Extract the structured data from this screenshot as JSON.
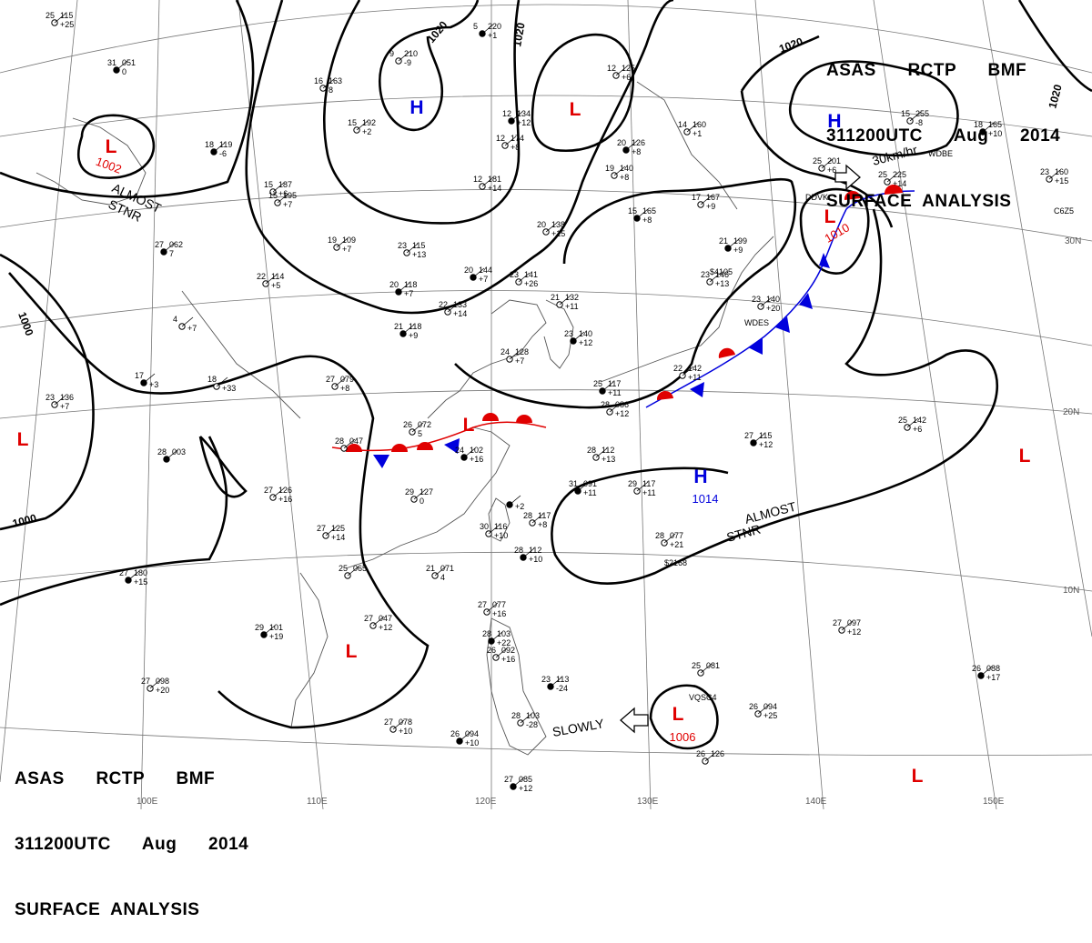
{
  "header": {
    "line1": "ASAS      RCTP      BMF",
    "line2": "311200UTC      Aug      2014",
    "line3": "SURFACE  ANALYSIS"
  },
  "latitude_labels": [
    {
      "id": "lat30",
      "text": "30N"
    },
    {
      "id": "lat20",
      "text": "20N"
    },
    {
      "id": "lat10",
      "text": "10N"
    }
  ],
  "longitude_labels": [
    {
      "id": "lon100",
      "text": "100E"
    },
    {
      "id": "lon110",
      "text": "110E"
    },
    {
      "id": "lon120",
      "text": "120E"
    },
    {
      "id": "lon130",
      "text": "130E"
    },
    {
      "id": "lon140",
      "text": "140E"
    },
    {
      "id": "lon150",
      "text": "150E"
    }
  ],
  "isobar_labels": [
    {
      "id": "iso1020a",
      "text": "1020"
    },
    {
      "id": "iso1020b",
      "text": "1020"
    },
    {
      "id": "iso1020c",
      "text": "1020"
    },
    {
      "id": "iso1020d",
      "text": "1020"
    },
    {
      "id": "iso1000a",
      "text": "1000"
    },
    {
      "id": "iso1000b",
      "text": "1000"
    }
  ],
  "pressure_centers": [
    {
      "id": "l-west",
      "type": "L",
      "pressure": "1002",
      "color": "#e00000"
    },
    {
      "id": "h-north",
      "type": "H",
      "color": "#0000dd"
    },
    {
      "id": "l-north",
      "type": "L",
      "color": "#e00000"
    },
    {
      "id": "h-northeast",
      "type": "H",
      "color": "#0000dd"
    },
    {
      "id": "l-japan",
      "type": "L",
      "pressure": "1010",
      "color": "#e00000"
    },
    {
      "id": "l-far-west",
      "type": "L",
      "color": "#e00000"
    },
    {
      "id": "l-china",
      "type": "L",
      "color": "#e00000"
    },
    {
      "id": "h-pacific",
      "type": "H",
      "pressure": "1014",
      "color": "#0000dd"
    },
    {
      "id": "l-east",
      "type": "L",
      "color": "#e00000"
    },
    {
      "id": "l-indochina",
      "type": "L",
      "color": "#e00000"
    },
    {
      "id": "l-philippines",
      "type": "L",
      "pressure": "1006",
      "color": "#e00000"
    },
    {
      "id": "l-southeast",
      "type": "L",
      "color": "#e00000"
    }
  ],
  "annotations": [
    {
      "id": "almost-stnr-west",
      "lines": [
        "ALMOST",
        "STNR"
      ]
    },
    {
      "id": "almost-stnr-pacific",
      "lines": [
        "ALMOST",
        "STNR"
      ]
    },
    {
      "id": "motion-japan",
      "text": "30km/hr"
    },
    {
      "id": "motion-philippines",
      "text": "SLOWLY"
    }
  ],
  "stations": [
    {
      "t": "31",
      "p": "051",
      "tend": "0"
    },
    {
      "t": "16",
      "p": "163",
      "tend": "8"
    },
    {
      "t": "9",
      "p": "210",
      "tend": "-9"
    },
    {
      "t": "5",
      "p": "220",
      "tend": "+1"
    },
    {
      "t": "15",
      "p": "192",
      "tend": "+2"
    },
    {
      "t": "12",
      "p": "174",
      "tend": "+8"
    },
    {
      "t": "18",
      "p": "119",
      "tend": "-6"
    },
    {
      "t": "15",
      "p": "187",
      "tend": "+6"
    },
    {
      "t": "15",
      "p": "195",
      "tend": "+7"
    },
    {
      "t": "12",
      "p": "134",
      "tend": "+12"
    },
    {
      "t": "12",
      "p": "181",
      "tend": "+14"
    },
    {
      "t": "12",
      "p": "125",
      "tend": "+6"
    },
    {
      "t": "20",
      "p": "126",
      "tend": "+8"
    },
    {
      "t": "19",
      "p": "140",
      "tend": "+8"
    },
    {
      "t": "14",
      "p": "160",
      "tend": "+1"
    },
    {
      "t": "15",
      "p": "165",
      "tend": "+8"
    },
    {
      "t": "17",
      "p": "167",
      "tend": "+9"
    },
    {
      "t": "15",
      "p": "255",
      "tend": "-8"
    },
    {
      "t": "18",
      "p": "165",
      "tend": "+10"
    },
    {
      "t": "23",
      "p": "160",
      "tend": "+15"
    },
    {
      "t": "20",
      "p": "138",
      "tend": "+15"
    },
    {
      "t": "21",
      "p": "199",
      "tend": "+9"
    },
    {
      "t": "25",
      "p": "201",
      "tend": "+6"
    },
    {
      "t": "25",
      "p": "225",
      "tend": "+14"
    },
    {
      "t": "27",
      "p": "062",
      "tend": "7"
    },
    {
      "t": "19",
      "p": "109",
      "tend": "+7"
    },
    {
      "t": "23",
      "p": "115",
      "tend": "+13"
    },
    {
      "t": "20",
      "p": "144",
      "tend": "+7"
    },
    {
      "t": "23",
      "p": "141",
      "tend": "+26"
    },
    {
      "t": "22",
      "p": "114",
      "tend": "+5"
    },
    {
      "t": "20",
      "p": "118",
      "tend": "+7"
    },
    {
      "t": "22",
      "p": "133",
      "tend": "+14"
    },
    {
      "t": "21",
      "p": "132",
      "tend": "+11"
    },
    {
      "t": "23",
      "p": "140",
      "tend": "+12"
    },
    {
      "t": "23",
      "p": "146",
      "tend": "+13"
    },
    {
      "t": "23",
      "p": "140",
      "tend": "+20"
    },
    {
      "t": "21",
      "p": "118",
      "tend": "+9"
    },
    {
      "t": "24",
      "p": "128",
      "tend": "+7"
    },
    {
      "t": "4",
      "p": "",
      "tend": "+7"
    },
    {
      "t": "17",
      "p": "",
      "tend": "+3"
    },
    {
      "t": "18",
      "p": "",
      "tend": "+33"
    },
    {
      "t": "27",
      "p": "079",
      "tend": "+8"
    },
    {
      "t": "25",
      "p": "117",
      "tend": "+11"
    },
    {
      "t": "22",
      "p": "142",
      "tend": "+11"
    },
    {
      "t": "23",
      "p": "136",
      "tend": "+7"
    },
    {
      "t": "28",
      "p": "003",
      "tend": ""
    },
    {
      "t": "28",
      "p": "047",
      "tend": ""
    },
    {
      "t": "26",
      "p": "072",
      "tend": "5"
    },
    {
      "t": "24",
      "p": "102",
      "tend": "+16"
    },
    {
      "t": "28",
      "p": "086",
      "tend": "+12"
    },
    {
      "t": "28",
      "p": "112",
      "tend": "+13"
    },
    {
      "t": "27",
      "p": "115",
      "tend": "+12"
    },
    {
      "t": "25",
      "p": "142",
      "tend": "+6"
    },
    {
      "t": "29",
      "p": "127",
      "tend": "0"
    },
    {
      "t": "31",
      "p": "091",
      "tend": "+11"
    },
    {
      "t": "29",
      "p": "117",
      "tend": "+11"
    },
    {
      "t": "27",
      "p": "126",
      "tend": "+16"
    },
    {
      "t": "",
      "p": "",
      "tend": "+2"
    },
    {
      "t": "28",
      "p": "117",
      "tend": "+8"
    },
    {
      "t": "30",
      "p": "116",
      "tend": "+10"
    },
    {
      "t": "28",
      "p": "112",
      "tend": "+10"
    },
    {
      "t": "27",
      "p": "125",
      "tend": "+14"
    },
    {
      "t": "28",
      "p": "077",
      "tend": "+21"
    },
    {
      "t": "27",
      "p": "180",
      "tend": "+15"
    },
    {
      "t": "25",
      "p": "065",
      "tend": ""
    },
    {
      "t": "21",
      "p": "071",
      "tend": "4"
    },
    {
      "t": "29",
      "p": "101",
      "tend": "+19"
    },
    {
      "t": "27",
      "p": "047",
      "tend": "+12"
    },
    {
      "t": "27",
      "p": "077",
      "tend": "+16"
    },
    {
      "t": "28",
      "p": "103",
      "tend": "+22"
    },
    {
      "t": "26",
      "p": "092",
      "tend": "+16"
    },
    {
      "t": "27",
      "p": "097",
      "tend": "+12"
    },
    {
      "t": "26",
      "p": "088",
      "tend": "+17"
    },
    {
      "t": "27",
      "p": "098",
      "tend": "+20"
    },
    {
      "t": "25",
      "p": "081",
      "tend": ""
    },
    {
      "t": "23",
      "p": "113",
      "tend": "-24"
    },
    {
      "t": "26",
      "p": "094",
      "tend": "+25"
    },
    {
      "t": "27",
      "p": "078",
      "tend": "+10"
    },
    {
      "t": "26",
      "p": "094",
      "tend": "+10"
    },
    {
      "t": "28",
      "p": "103",
      "tend": "-28"
    },
    {
      "t": "26",
      "p": "126",
      "tend": ""
    },
    {
      "t": "27",
      "p": "085",
      "tend": "+12"
    },
    {
      "t": "25",
      "p": "115",
      "tend": "+25"
    }
  ],
  "station_codes": [
    {
      "id": "c1",
      "text": "DDVK"
    },
    {
      "id": "c2",
      "text": "WDBE"
    },
    {
      "id": "c3",
      "text": "C6Z5"
    },
    {
      "id": "c4",
      "text": "WDES"
    },
    {
      "id": "c5",
      "text": "$2168"
    },
    {
      "id": "c6",
      "text": "VQSC4"
    },
    {
      "id": "c7",
      "text": "$4105"
    }
  ]
}
